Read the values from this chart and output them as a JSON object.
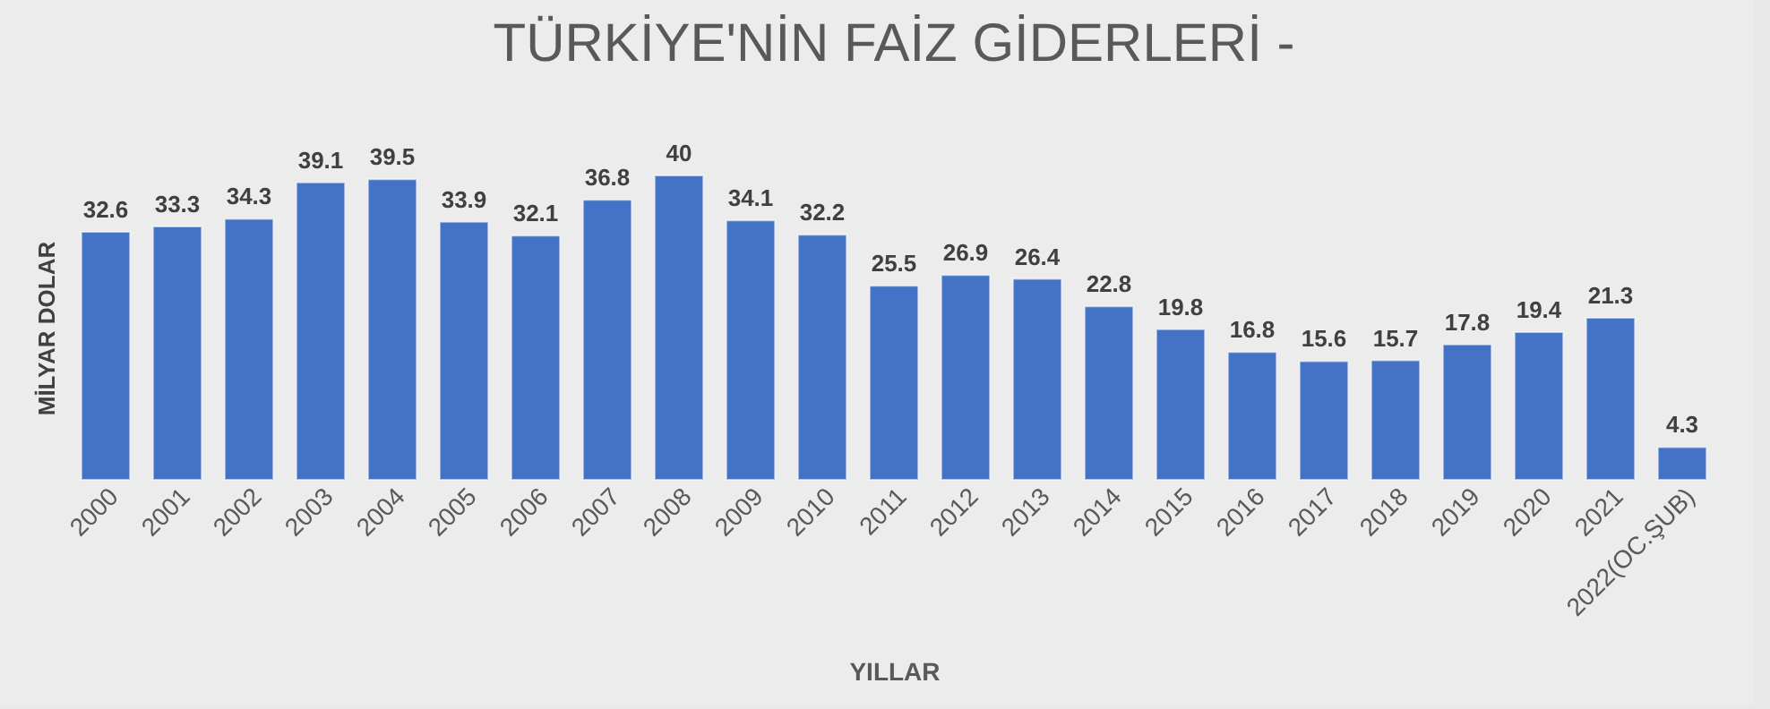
{
  "chart_data": {
    "type": "bar",
    "title": "TÜRKİYE'NİN FAİZ GİDERLERİ -",
    "xlabel": "YILLAR",
    "ylabel": "MİLYAR DOLAR",
    "categories": [
      "2000",
      "2001",
      "2002",
      "2003",
      "2004",
      "2005",
      "2006",
      "2007",
      "2008",
      "2009",
      "2010",
      "2011",
      "2012",
      "2013",
      "2014",
      "2015",
      "2016",
      "2017",
      "2018",
      "2019",
      "2020",
      "2021",
      "2022(OC.ŞUB)"
    ],
    "values": [
      32.6,
      33.3,
      34.3,
      39.1,
      39.5,
      33.9,
      32.1,
      36.8,
      40,
      34.1,
      32.2,
      25.5,
      26.9,
      26.4,
      22.8,
      19.8,
      16.8,
      15.6,
      15.7,
      17.8,
      19.4,
      21.3,
      4.3
    ],
    "color": "#4472c4",
    "data_labels": true,
    "tick_labels": "x",
    "grid": false
  }
}
